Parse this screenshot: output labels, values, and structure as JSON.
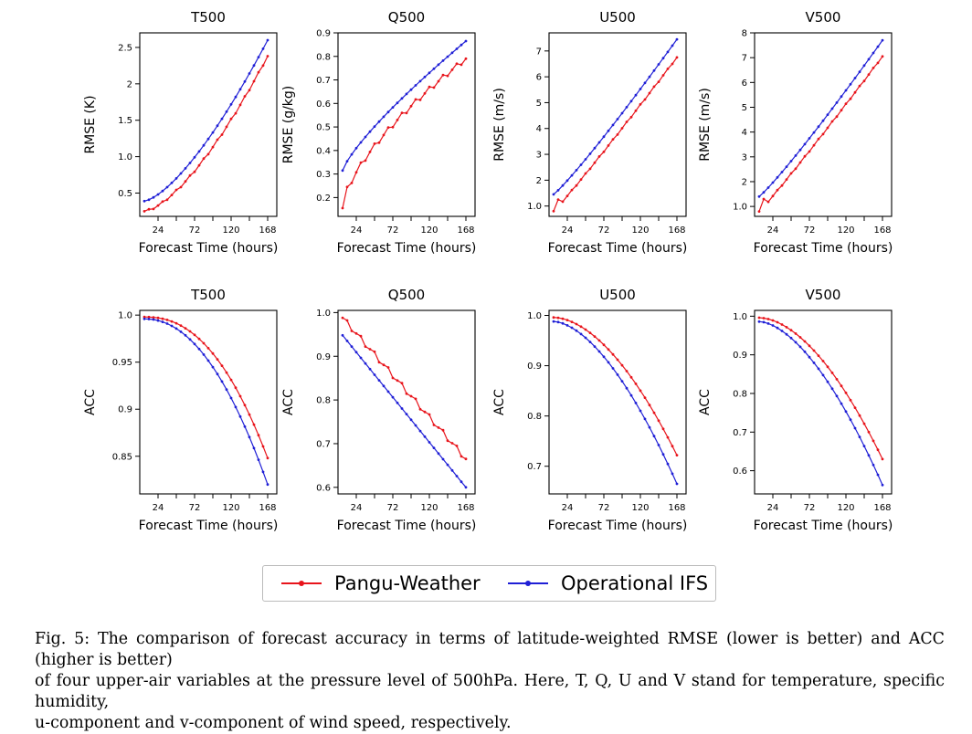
{
  "colors": {
    "pangu": "#e8141b",
    "ifs": "#1f1fd6"
  },
  "legend": {
    "items": [
      {
        "label": "Pangu-Weather",
        "color": "#e8141b"
      },
      {
        "label": "Operational IFS",
        "color": "#1f1fd6"
      }
    ]
  },
  "caption": {
    "line1": "Fig. 5: The comparison of forecast accuracy in terms of latitude-weighted RMSE (lower is better) and ACC (higher is better)",
    "line2": "of four upper-air variables at the pressure level of 500hPa. Here, T, Q, U and V stand for temperature, specific humidity,",
    "line3": "u-component and v-component of wind speed, respectively."
  },
  "chart_data": [
    {
      "type": "line",
      "title": "T500",
      "xlabel": "Forecast Time (hours)",
      "ylabel": "RMSE (K)",
      "xlim": [
        0,
        180
      ],
      "ylim": [
        0.18,
        2.7
      ],
      "xticks": [
        24,
        72,
        120,
        168
      ],
      "yticks": [
        0.5,
        1.0,
        1.5,
        2.0,
        2.5
      ],
      "grid": false,
      "series": [
        {
          "name": "Pangu-Weather",
          "start": [
            6,
            0.25
          ],
          "end": [
            168,
            2.38
          ],
          "curve": 1.5,
          "jitter": 0.012
        },
        {
          "name": "Operational IFS",
          "start": [
            6,
            0.39
          ],
          "end": [
            168,
            2.6
          ],
          "curve": 1.45,
          "jitter": 0.0
        }
      ]
    },
    {
      "type": "line",
      "title": "Q500",
      "xlabel": "Forecast Time (hours)",
      "ylabel": "RMSE (g/kg)",
      "xlim": [
        0,
        180
      ],
      "ylim": [
        0.12,
        0.9
      ],
      "xticks": [
        24,
        72,
        120,
        168
      ],
      "yticks": [
        0.2,
        0.3,
        0.4,
        0.5,
        0.6,
        0.7,
        0.8,
        0.9
      ],
      "grid": false,
      "series": [
        {
          "name": "Pangu-Weather",
          "start": [
            6,
            0.155
          ],
          "second": [
            12,
            0.245
          ],
          "end": [
            168,
            0.79
          ],
          "curve": 0.65,
          "jitter": 0.01
        },
        {
          "name": "Operational IFS",
          "start": [
            6,
            0.315
          ],
          "end": [
            168,
            0.865
          ],
          "curve": 0.8,
          "jitter": 0.0
        }
      ]
    },
    {
      "type": "line",
      "title": "U500",
      "xlabel": "Forecast Time (hours)",
      "ylabel": "RMSE (m/s)",
      "xlim": [
        0,
        180
      ],
      "ylim": [
        0.6,
        7.7
      ],
      "xticks": [
        24,
        72,
        120,
        168
      ],
      "yticks": [
        1,
        2,
        3,
        4,
        5,
        6,
        7
      ],
      "grid": false,
      "series": [
        {
          "name": "Pangu-Weather",
          "start": [
            6,
            0.8
          ],
          "second": [
            12,
            1.25
          ],
          "end": [
            168,
            6.75
          ],
          "curve": 1.05,
          "jitter": 0.02
        },
        {
          "name": "Operational IFS",
          "start": [
            6,
            1.45
          ],
          "end": [
            168,
            7.45
          ],
          "curve": 1.1,
          "jitter": 0.0
        }
      ]
    },
    {
      "type": "line",
      "title": "V500",
      "xlabel": "Forecast Time (hours)",
      "ylabel": "RMSE (m/s)",
      "xlim": [
        0,
        180
      ],
      "ylim": [
        0.6,
        8.0
      ],
      "xticks": [
        24,
        72,
        120,
        168
      ],
      "yticks": [
        1,
        2,
        3,
        4,
        5,
        6,
        7,
        8
      ],
      "grid": false,
      "series": [
        {
          "name": "Pangu-Weather",
          "start": [
            6,
            0.8
          ],
          "second": [
            12,
            1.3
          ],
          "end": [
            168,
            7.05
          ],
          "curve": 1.05,
          "jitter": 0.02
        },
        {
          "name": "Operational IFS",
          "start": [
            6,
            1.4
          ],
          "end": [
            168,
            7.7
          ],
          "curve": 1.1,
          "jitter": 0.0
        }
      ]
    },
    {
      "type": "line",
      "title": "T500",
      "xlabel": "Forecast Time (hours)",
      "ylabel": "ACC",
      "xlim": [
        0,
        180
      ],
      "ylim": [
        0.81,
        1.005
      ],
      "xticks": [
        24,
        72,
        120,
        168
      ],
      "yticks": [
        0.85,
        0.9,
        0.95,
        1.0
      ],
      "grid": false,
      "series": [
        {
          "name": "Pangu-Weather",
          "start": [
            6,
            0.998
          ],
          "end": [
            168,
            0.848
          ],
          "curve": 2.3,
          "jitter": 0.0
        },
        {
          "name": "Operational IFS",
          "start": [
            6,
            0.996
          ],
          "end": [
            168,
            0.82
          ],
          "curve": 2.1,
          "jitter": 0.0
        }
      ]
    },
    {
      "type": "line",
      "title": "Q500",
      "xlabel": "Forecast Time (hours)",
      "ylabel": "ACC",
      "xlim": [
        0,
        180
      ],
      "ylim": [
        0.585,
        1.005
      ],
      "xticks": [
        24,
        72,
        120,
        168
      ],
      "yticks": [
        0.6,
        0.7,
        0.8,
        0.9,
        1.0
      ],
      "grid": false,
      "series": [
        {
          "name": "Pangu-Weather",
          "start": [
            6,
            0.988
          ],
          "end": [
            168,
            0.665
          ],
          "curve": 1.0,
          "jitter": 0.006
        },
        {
          "name": "Operational IFS",
          "start": [
            6,
            0.948
          ],
          "end": [
            168,
            0.6
          ],
          "curve": 1.0,
          "jitter": 0.0
        }
      ]
    },
    {
      "type": "line",
      "title": "U500",
      "xlabel": "Forecast Time (hours)",
      "ylabel": "ACC",
      "xlim": [
        0,
        180
      ],
      "ylim": [
        0.645,
        1.01
      ],
      "xticks": [
        24,
        72,
        120,
        168
      ],
      "yticks": [
        0.7,
        0.8,
        0.9,
        1.0
      ],
      "grid": false,
      "series": [
        {
          "name": "Pangu-Weather",
          "start": [
            6,
            0.996
          ],
          "end": [
            168,
            0.722
          ],
          "curve": 1.8,
          "jitter": 0.0
        },
        {
          "name": "Operational IFS",
          "start": [
            6,
            0.988
          ],
          "end": [
            168,
            0.665
          ],
          "curve": 1.7,
          "jitter": 0.0
        }
      ]
    },
    {
      "type": "line",
      "title": "V500",
      "xlabel": "Forecast Time (hours)",
      "ylabel": "ACC",
      "xlim": [
        0,
        180
      ],
      "ylim": [
        0.54,
        1.015
      ],
      "xticks": [
        24,
        72,
        120,
        168
      ],
      "yticks": [
        0.6,
        0.7,
        0.8,
        0.9,
        1.0
      ],
      "grid": false,
      "series": [
        {
          "name": "Pangu-Weather",
          "start": [
            6,
            0.996
          ],
          "end": [
            168,
            0.63
          ],
          "curve": 1.8,
          "jitter": 0.0
        },
        {
          "name": "Operational IFS",
          "start": [
            6,
            0.986
          ],
          "end": [
            168,
            0.563
          ],
          "curve": 1.7,
          "jitter": 0.0
        }
      ]
    }
  ]
}
